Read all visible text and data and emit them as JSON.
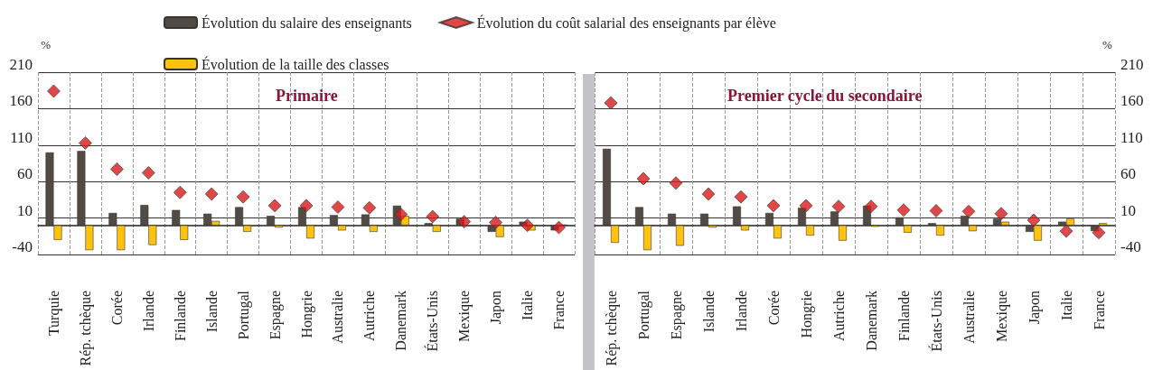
{
  "chart_data": [
    {
      "type": "bar",
      "title": "Primaire",
      "ylabel": "%",
      "legend": "top",
      "grid": true,
      "ylim": [
        -40,
        210
      ],
      "yticks": [
        -40,
        10,
        60,
        110,
        160,
        210
      ],
      "categories": [
        "Turquie",
        "Rép. tchèque",
        "Corée",
        "Irlande",
        "Finlande",
        "Islande",
        "Portugal",
        "Espagne",
        "Hongrie",
        "Australie",
        "Autriche",
        "Danemark",
        "États-Unis",
        "Mexique",
        "Japon",
        "Italie",
        "France"
      ],
      "series": [
        {
          "name": "Évolution du salaire des enseignants",
          "type": "bar",
          "color": "#524a45",
          "values": [
            100,
            102,
            17,
            28,
            21,
            16,
            25,
            13,
            25,
            14,
            15,
            27,
            3,
            9,
            -9,
            5,
            -7
          ]
        },
        {
          "name": "Évolution de la taille des classes",
          "type": "bar",
          "color": "#ffc20e",
          "values": [
            -20,
            -34,
            -34,
            -27,
            -20,
            6,
            -9,
            -3,
            -18,
            -7,
            -9,
            13,
            -9,
            null,
            -16,
            -7,
            1
          ]
        },
        {
          "name": "Évolution du coût salarial des enseignants par élève",
          "type": "scatter",
          "marker": "diamond",
          "color": "#d7191c",
          "values": [
            184,
            113,
            77,
            72,
            45,
            43,
            39,
            27,
            27,
            25,
            24,
            15,
            12,
            5,
            4,
            0,
            -3
          ]
        }
      ]
    },
    {
      "type": "bar",
      "title": "Premier cycle du secondaire",
      "ylabel": "%",
      "grid": true,
      "ylim": [
        -40,
        210
      ],
      "yticks": [
        -40,
        10,
        60,
        110,
        160,
        210
      ],
      "categories": [
        "Rép. tchèque",
        "Portugal",
        "Espagne",
        "Islande",
        "Irlande",
        "Corée",
        "Hongrie",
        "Autriche",
        "Danemark",
        "Finlande",
        "États-Unis",
        "Australie",
        "Mexique",
        "Japon",
        "Italie",
        "France"
      ],
      "series": [
        {
          "type": "bar",
          "color": "#524a45",
          "values": [
            105,
            25,
            16,
            16,
            26,
            17,
            24,
            19,
            27,
            11,
            3,
            13,
            9,
            -9,
            5,
            -8
          ]
        },
        {
          "type": "bar",
          "color": "#ffc20e",
          "values": [
            -24,
            -34,
            -28,
            -3,
            -7,
            -18,
            -14,
            -21,
            -2,
            -10,
            -14,
            -8,
            5,
            -21,
            9,
            3
          ]
        },
        {
          "type": "scatter",
          "marker": "diamond",
          "color": "#d7191c",
          "values": [
            168,
            64,
            58,
            43,
            39,
            27,
            27,
            26,
            26,
            21,
            20,
            19,
            16,
            7,
            -8,
            -10
          ]
        }
      ]
    }
  ]
}
